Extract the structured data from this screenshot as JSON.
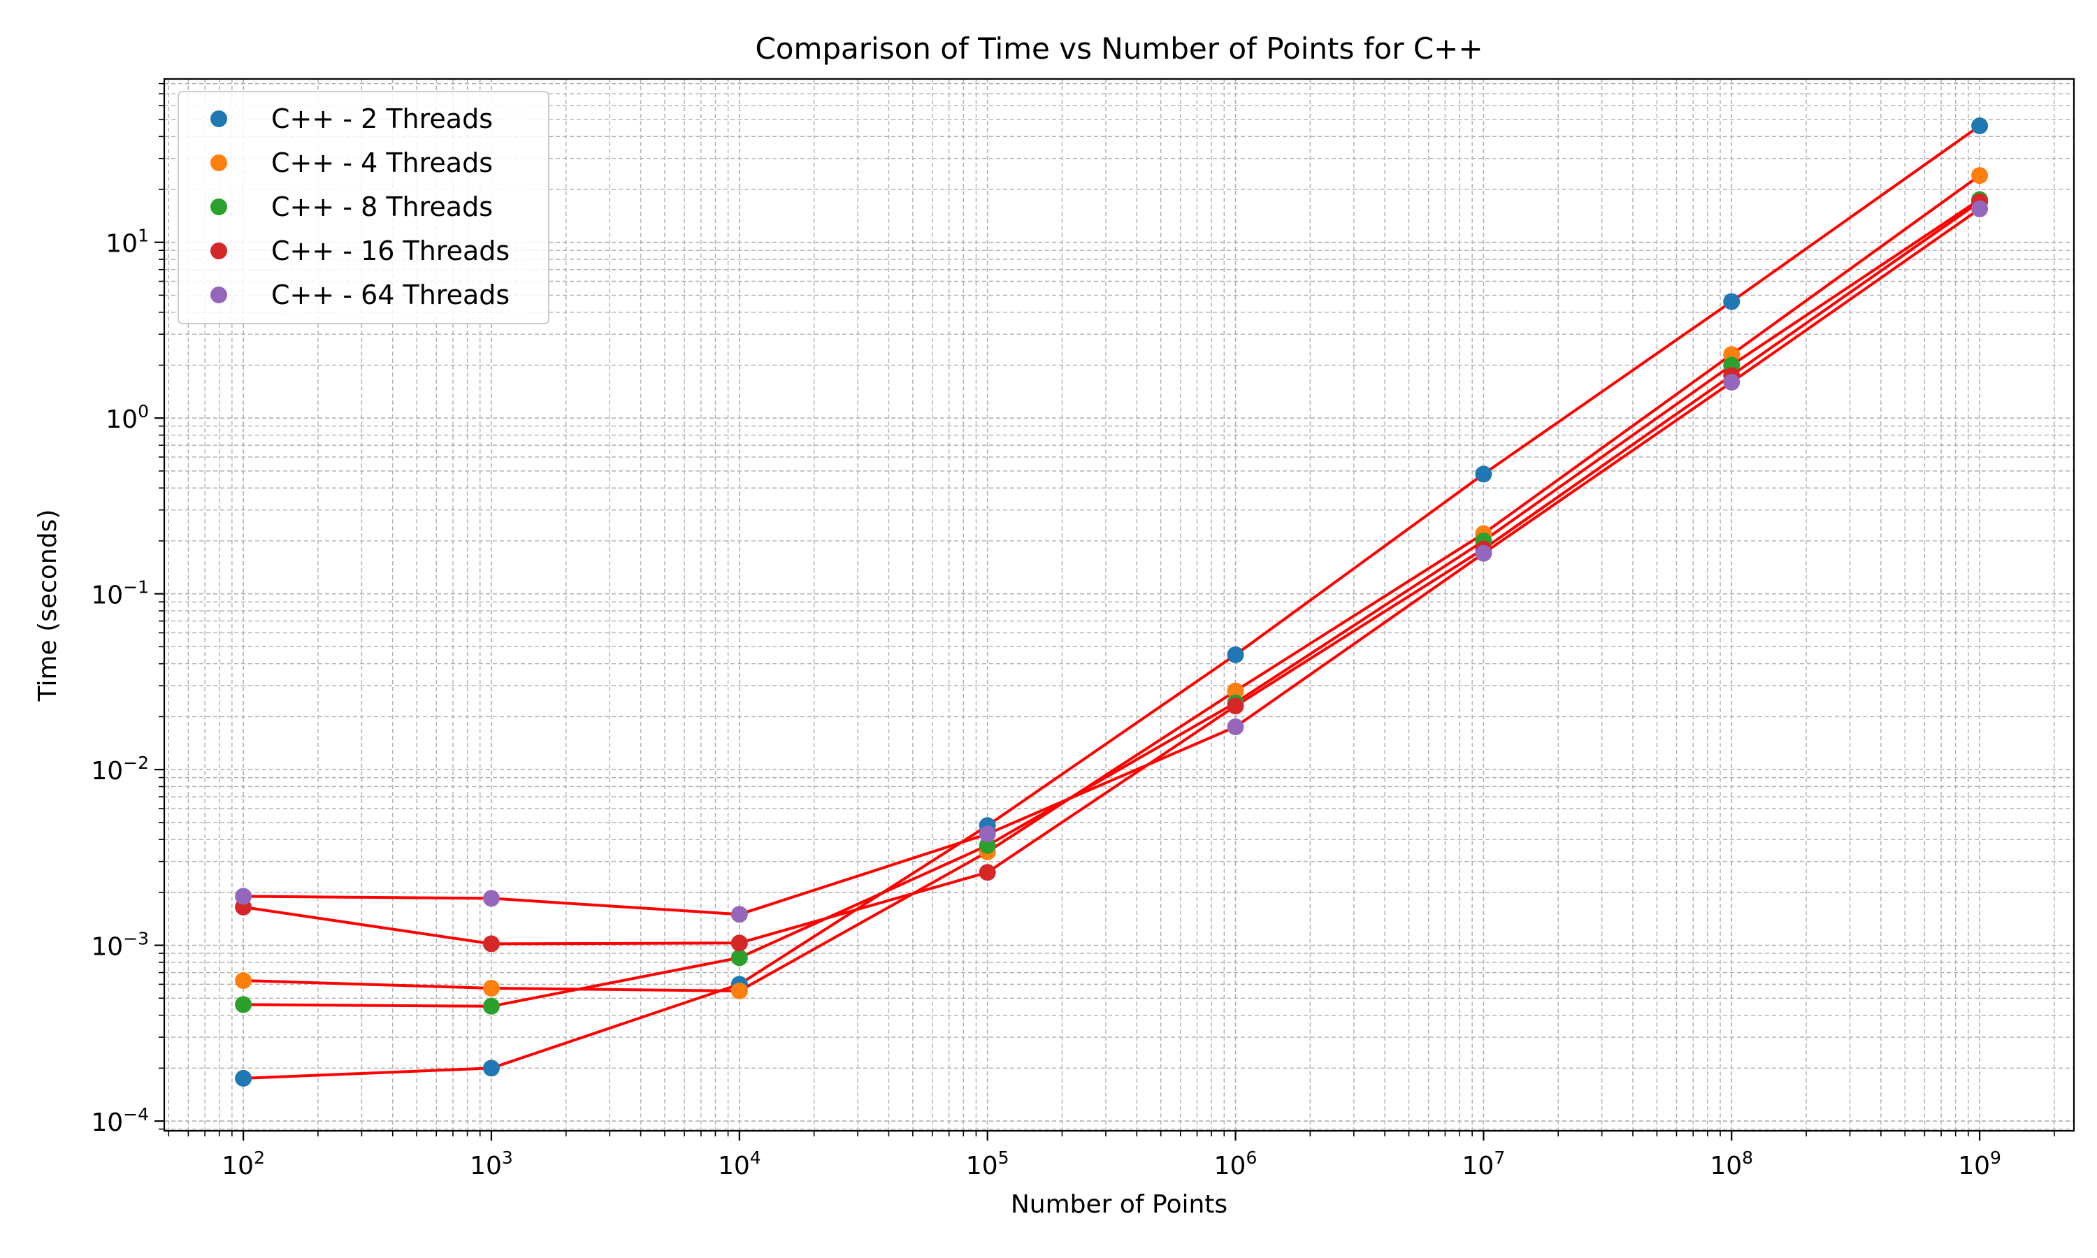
{
  "chart_data": {
    "type": "scatter",
    "title": "Comparison of Time vs Number of Points for C++",
    "xlabel": "Number of Points",
    "ylabel": "Time (seconds)",
    "xscale": "log",
    "yscale": "log",
    "xlim": [
      48,
      2400000000
    ],
    "ylim": [
      8.8e-05,
      85
    ],
    "grid": true,
    "legend_position": "top-left",
    "line_color": "#ff0000",
    "x_ticks": [
      {
        "base": "10",
        "exp": "2",
        "value": 100
      },
      {
        "base": "10",
        "exp": "3",
        "value": 1000
      },
      {
        "base": "10",
        "exp": "4",
        "value": 10000
      },
      {
        "base": "10",
        "exp": "5",
        "value": 100000
      },
      {
        "base": "10",
        "exp": "6",
        "value": 1000000
      },
      {
        "base": "10",
        "exp": "7",
        "value": 10000000
      },
      {
        "base": "10",
        "exp": "8",
        "value": 100000000
      },
      {
        "base": "10",
        "exp": "9",
        "value": 1000000000
      }
    ],
    "y_ticks": [
      {
        "base": "10",
        "exp": "−4",
        "value": 0.0001
      },
      {
        "base": "10",
        "exp": "−3",
        "value": 0.001
      },
      {
        "base": "10",
        "exp": "−2",
        "value": 0.01
      },
      {
        "base": "10",
        "exp": "−1",
        "value": 0.1
      },
      {
        "base": "10",
        "exp": "0",
        "value": 1
      },
      {
        "base": "10",
        "exp": "1",
        "value": 10
      }
    ],
    "x": [
      100,
      1000,
      10000,
      100000,
      1000000,
      10000000,
      100000000,
      1000000000
    ],
    "series": [
      {
        "name": "C++ - 2 Threads",
        "color": "#1f77b4",
        "values": [
          0.000175,
          0.0002,
          0.0006,
          0.0048,
          0.045,
          0.48,
          4.6,
          46
        ]
      },
      {
        "name": "C++ - 4 Threads",
        "color": "#ff7f0e",
        "values": [
          0.00063,
          0.00057,
          0.00055,
          0.0034,
          0.028,
          0.22,
          2.3,
          24
        ]
      },
      {
        "name": "C++ - 8 Threads",
        "color": "#2ca02c",
        "values": [
          0.00046,
          0.00045,
          0.00085,
          0.0037,
          0.024,
          0.2,
          2.0,
          17.5
        ]
      },
      {
        "name": "C++ - 16 Threads",
        "color": "#d62728",
        "values": [
          0.00165,
          0.00102,
          0.00103,
          0.0026,
          0.023,
          0.18,
          1.75,
          17
        ]
      },
      {
        "name": "C++ - 64 Threads",
        "color": "#9467bd",
        "values": [
          0.0019,
          0.00185,
          0.0015,
          0.0043,
          0.0175,
          0.17,
          1.6,
          15.5
        ]
      }
    ]
  }
}
